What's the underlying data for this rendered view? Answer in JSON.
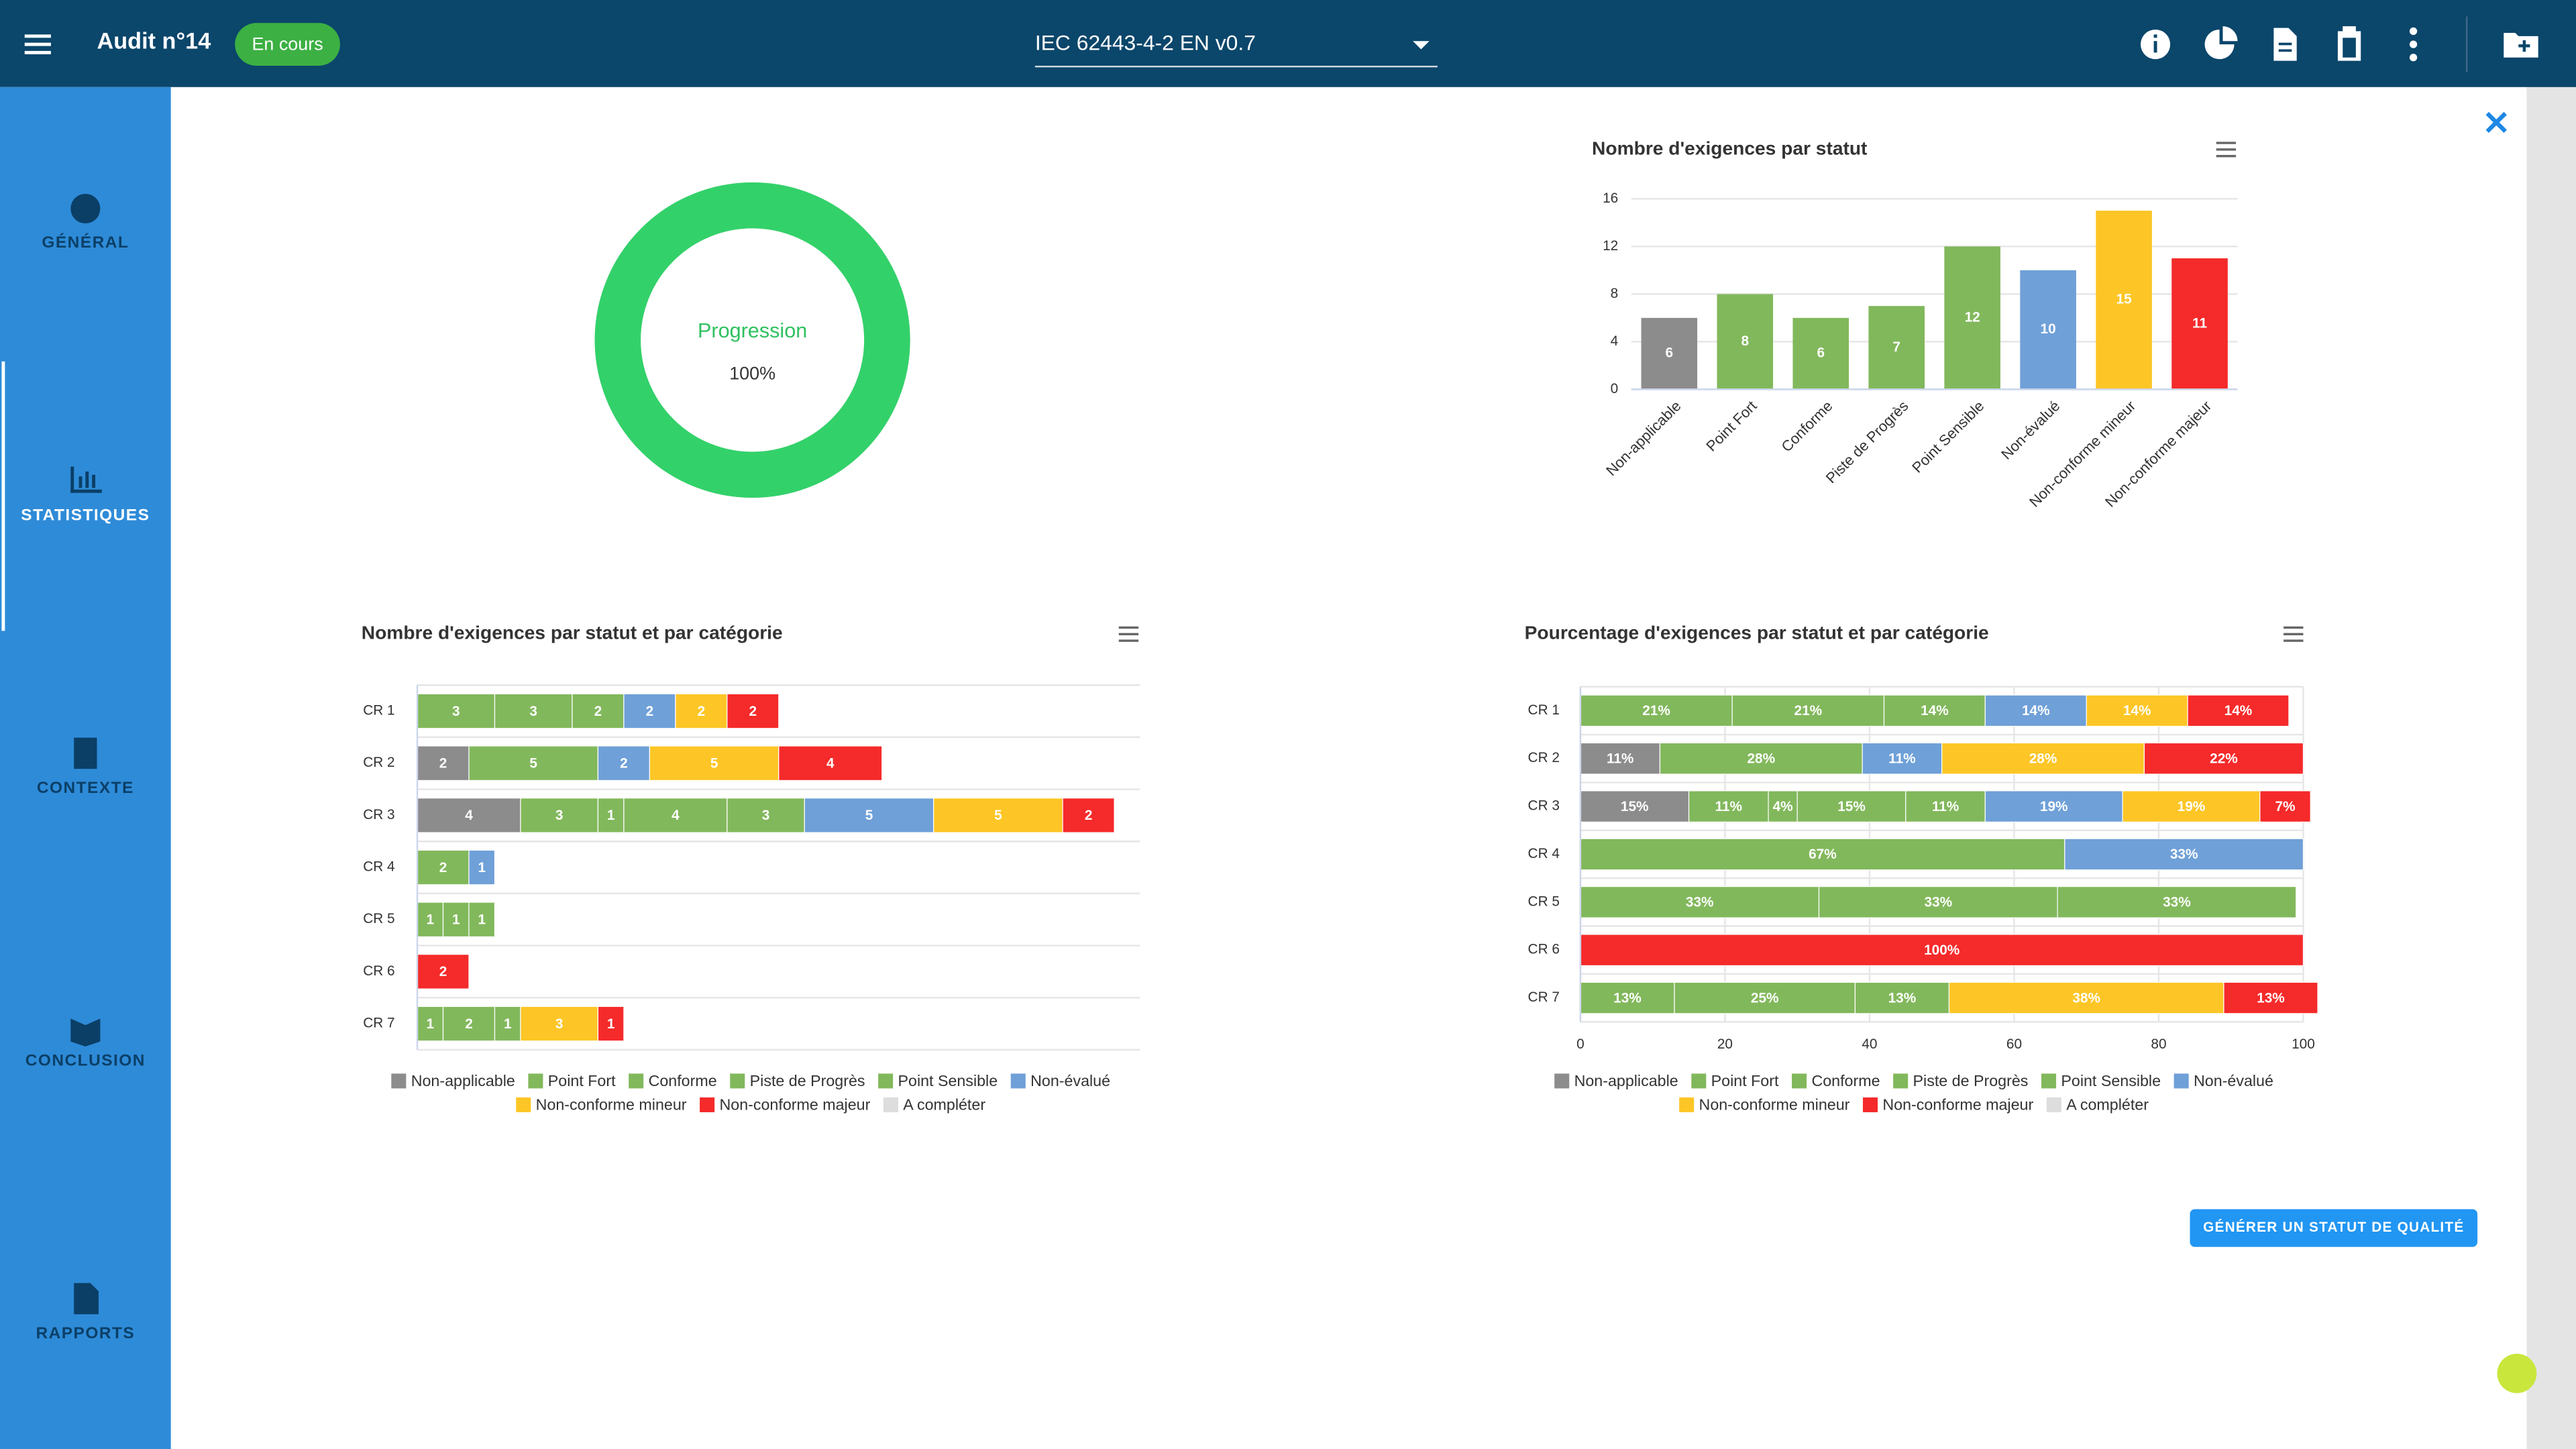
{
  "header": {
    "title": "Audit n°14",
    "status": "En cours",
    "standard": "IEC 62443-4-2 EN v0.7"
  },
  "sidebar": {
    "items": [
      "GÉNÉRAL",
      "STATISTIQUES",
      "CONTEXTE",
      "CONCLUSION",
      "RAPPORTS"
    ]
  },
  "progress": {
    "title": "Progression",
    "value": 100,
    "value_label": "100%"
  },
  "chart_data": [
    {
      "type": "bar",
      "title": "Nombre d'exigences par statut",
      "categories": [
        "Non-applicable",
        "Point Fort",
        "Conforme",
        "Piste de Progrès",
        "Point Sensible",
        "Non-évalué",
        "Non-conforme mineur",
        "Non-conforme majeur"
      ],
      "values": [
        6,
        8,
        6,
        7,
        12,
        10,
        15,
        11
      ],
      "colors": [
        "#8c8c8c",
        "#82b85c",
        "#82b85c",
        "#82b85c",
        "#82b85c",
        "#6fa0d8",
        "#fdc626",
        "#f52a2a"
      ],
      "ylim": [
        0,
        16
      ],
      "yticks": [
        0,
        4,
        8,
        12,
        16
      ],
      "grid": true
    },
    {
      "type": "stacked-bar",
      "title": "Nombre d'exigences par statut et par catégorie",
      "categories": [
        "CR 1",
        "CR 2",
        "CR 3",
        "CR 4",
        "CR 5",
        "CR 6",
        "CR 7"
      ],
      "xlim": [
        0,
        28
      ],
      "legend": "bottom",
      "series": [
        {
          "name": "Non-applicable",
          "color": "#8c8c8c",
          "values": [
            null,
            2,
            4,
            null,
            null,
            null,
            null
          ]
        },
        {
          "name": "Point Fort",
          "color": "#82b85c",
          "values": [
            3,
            null,
            3,
            null,
            1,
            null,
            1
          ]
        },
        {
          "name": "Conforme",
          "color": "#82b85c",
          "values": [
            3,
            null,
            1,
            2,
            null,
            null,
            null
          ]
        },
        {
          "name": "Piste de Progrès",
          "color": "#82b85c",
          "values": [
            null,
            null,
            4,
            null,
            1,
            null,
            2
          ]
        },
        {
          "name": "Point Sensible",
          "color": "#82b85c",
          "values": [
            2,
            5,
            3,
            null,
            1,
            null,
            1
          ]
        },
        {
          "name": "Non-évalué",
          "color": "#6fa0d8",
          "values": [
            2,
            2,
            5,
            1,
            null,
            null,
            null
          ]
        },
        {
          "name": "Non-conforme mineur",
          "color": "#fdc626",
          "values": [
            2,
            5,
            5,
            null,
            null,
            null,
            3
          ]
        },
        {
          "name": "Non-conforme majeur",
          "color": "#f52a2a",
          "values": [
            2,
            4,
            2,
            null,
            null,
            2,
            1
          ]
        },
        {
          "name": "A compléter",
          "color": "#dddddd",
          "values": [
            null,
            null,
            null,
            null,
            null,
            null,
            null
          ]
        }
      ]
    },
    {
      "type": "stacked-bar",
      "title": "Pourcentage d'exigences par statut et par catégorie",
      "categories": [
        "CR 1",
        "CR 2",
        "CR 3",
        "CR 4",
        "CR 5",
        "CR 6",
        "CR 7"
      ],
      "xlim": [
        0,
        100
      ],
      "xticks": [
        0,
        20,
        40,
        60,
        80,
        100
      ],
      "legend": "bottom",
      "series": [
        {
          "name": "Non-applicable",
          "color": "#8c8c8c",
          "values": [
            null,
            11,
            15,
            null,
            null,
            null,
            null
          ],
          "value_labels": [
            null,
            "11%",
            "15%",
            null,
            null,
            null,
            null
          ]
        },
        {
          "name": "Point Fort",
          "color": "#82b85c",
          "values": [
            21,
            null,
            11,
            null,
            33,
            null,
            13
          ],
          "value_labels": [
            "21%",
            null,
            "11%",
            null,
            "33%",
            null,
            "13%"
          ]
        },
        {
          "name": "Conforme",
          "color": "#82b85c",
          "values": [
            21,
            null,
            4,
            67,
            null,
            null,
            null
          ],
          "value_labels": [
            "21%",
            null,
            "4%",
            "67%",
            null,
            null,
            null
          ]
        },
        {
          "name": "Piste de Progrès",
          "color": "#82b85c",
          "values": [
            null,
            null,
            15,
            null,
            33,
            null,
            25
          ],
          "value_labels": [
            null,
            null,
            "15%",
            null,
            "33%",
            null,
            "25%"
          ]
        },
        {
          "name": "Point Sensible",
          "color": "#82b85c",
          "values": [
            14,
            28,
            11,
            null,
            33,
            null,
            13
          ],
          "value_labels": [
            "14%",
            "28%",
            "11%",
            null,
            "33%",
            null,
            "13%"
          ]
        },
        {
          "name": "Non-évalué",
          "color": "#6fa0d8",
          "values": [
            14,
            11,
            19,
            33,
            null,
            null,
            null
          ],
          "value_labels": [
            "14%",
            "11%",
            "19%",
            "33%",
            null,
            null,
            null
          ]
        },
        {
          "name": "Non-conforme mineur",
          "color": "#fdc626",
          "values": [
            14,
            28,
            19,
            null,
            null,
            null,
            38
          ],
          "value_labels": [
            "14%",
            "28%",
            "19%",
            null,
            null,
            null,
            "38%"
          ]
        },
        {
          "name": "Non-conforme majeur",
          "color": "#f52a2a",
          "values": [
            14,
            22,
            7,
            null,
            null,
            100,
            13
          ],
          "value_labels": [
            "14%",
            "22%",
            "7%",
            null,
            null,
            "100%",
            "13%"
          ]
        },
        {
          "name": "A compléter",
          "color": "#dddddd",
          "values": [
            null,
            null,
            null,
            null,
            null,
            null,
            null
          ],
          "value_labels": [
            null,
            null,
            null,
            null,
            null,
            null,
            null
          ]
        }
      ]
    }
  ],
  "button": "GÉNÉRER UN STATUT DE QUALITÉ"
}
